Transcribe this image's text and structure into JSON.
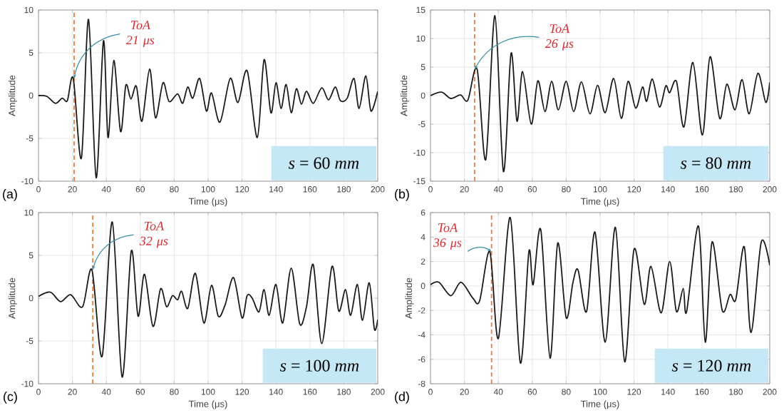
{
  "chart_data": [
    {
      "type": "line",
      "xlabel": "Time (μs)",
      "ylabel": "Amplitude",
      "xlim": [
        0,
        200
      ],
      "ylim": [
        -10,
        10
      ],
      "xticks": [
        0,
        20,
        40,
        60,
        80,
        100,
        120,
        140,
        160,
        180,
        200
      ],
      "yticks": [
        -10,
        -5,
        0,
        5,
        10
      ],
      "grid": true,
      "marker": "none",
      "line_style": "solid",
      "color": "#1a1a1a",
      "x": [
        0,
        5,
        10,
        14,
        17,
        20.5,
        25.3,
        29.5,
        34,
        38.3,
        41,
        44.4,
        48.4,
        51.5,
        54.5,
        57.7,
        61,
        65.5,
        69,
        73.4,
        77,
        82,
        85,
        88,
        91,
        95,
        99,
        102,
        107,
        113,
        117.6,
        123,
        129,
        133,
        137,
        140,
        143,
        146,
        149,
        152,
        155,
        158,
        162,
        167,
        171,
        175,
        178,
        182,
        186,
        189,
        193,
        196,
        200
      ],
      "values": [
        0,
        -0.1,
        -0.9,
        -0.3,
        -0.6,
        2.0,
        -7.3,
        8.9,
        -9.6,
        6.4,
        -4.9,
        4.1,
        -4.2,
        1.2,
        -0.4,
        1.1,
        -3.0,
        3.1,
        -2.6,
        1.5,
        -0.7,
        0.2,
        -0.9,
        1.0,
        -0.3,
        2.0,
        -1.8,
        0.3,
        -3.1,
        2.0,
        -0.8,
        2.9,
        -4.9,
        4.2,
        -2.0,
        1.5,
        -1.5,
        1.3,
        -2.0,
        0.8,
        -1.0,
        0.5,
        -0.9,
        0.9,
        -0.5,
        1.0,
        -0.6,
        -0.3,
        2.0,
        -1.5,
        2.3,
        -1.8,
        0.5
      ],
      "ref_lines": [
        {
          "axis": "x",
          "value": 21,
          "color": "#f07c3c",
          "line_style": "dashed"
        }
      ],
      "annotations": [
        {
          "text": "ToA 21 μs",
          "x": 21,
          "y": 2
        },
        "*s* = 60 *mm*",
        "(a)"
      ]
    },
    {
      "type": "line",
      "xlabel": "Time (μs)",
      "ylabel": "Amplitude",
      "xlim": [
        0,
        200
      ],
      "ylim": [
        -15,
        15
      ],
      "xticks": [
        0,
        20,
        40,
        60,
        80,
        100,
        120,
        140,
        160,
        180,
        200
      ],
      "yticks": [
        -15,
        -10,
        -5,
        0,
        5,
        10,
        15
      ],
      "grid": true,
      "marker": "none",
      "line_style": "solid",
      "color": "#1a1a1a",
      "x": [
        0,
        6.5,
        12,
        17.7,
        22,
        27.5,
        32.6,
        38,
        43,
        47.5,
        51,
        54.3,
        59.4,
        63.3,
        67.5,
        71.4,
        75.4,
        80,
        84.4,
        89,
        94,
        98.5,
        103,
        108,
        112.5,
        116.5,
        121,
        125,
        127.4,
        130.8,
        135,
        138.7,
        141,
        145,
        149.4,
        154.7,
        160.3,
        164.8,
        170.5,
        174.7,
        179.5,
        183.7,
        187.9,
        193,
        197.7,
        200
      ],
      "values": [
        0,
        0.6,
        -0.5,
        0.1,
        -0.8,
        4.6,
        -11.2,
        14.0,
        -13.3,
        7.4,
        -4.5,
        4.2,
        -5.0,
        2.6,
        -2.8,
        2.5,
        -2.5,
        2.5,
        -2.8,
        2.4,
        -3.2,
        1.8,
        -3.0,
        3.0,
        -4.0,
        2.5,
        -2.2,
        1.5,
        -1.0,
        2.9,
        -2.0,
        1.7,
        0.5,
        2.5,
        -5.5,
        5.8,
        -6.9,
        6.8,
        -4.0,
        2.0,
        -2.5,
        2.8,
        -3.2,
        3.9,
        -1.2,
        2.3
      ],
      "ref_lines": [
        {
          "axis": "x",
          "value": 26,
          "color": "#f07c3c",
          "line_style": "dashed"
        }
      ],
      "annotations": [
        {
          "text": "ToA 26 μs",
          "x": 26,
          "y": 4.6
        },
        "*s* = 80 *mm*",
        "(b)"
      ]
    },
    {
      "type": "line",
      "xlabel": "Time (μs)",
      "ylabel": "Amplitude",
      "xlim": [
        0,
        200
      ],
      "ylim": [
        -10,
        10
      ],
      "xticks": [
        0,
        20,
        40,
        60,
        80,
        100,
        120,
        140,
        160,
        180,
        200
      ],
      "yticks": [
        -10,
        -5,
        0,
        5,
        10
      ],
      "grid": true,
      "marker": "none",
      "line_style": "solid",
      "color": "#1a1a1a",
      "x": [
        0,
        7,
        13,
        19,
        26,
        31.5,
        37.5,
        43.5,
        49.3,
        54.7,
        58.7,
        62.5,
        67.5,
        72,
        75.5,
        79,
        82,
        84.4,
        88,
        92.5,
        97.5,
        102,
        106,
        110,
        115,
        120,
        123,
        126,
        130,
        133,
        136,
        140,
        144,
        149,
        154,
        158,
        162,
        167,
        173,
        177,
        181,
        184,
        188,
        191,
        195,
        198,
        200
      ],
      "values": [
        0.2,
        0.7,
        -0.4,
        0.4,
        -1.0,
        3.3,
        -6.8,
        8.9,
        -9.2,
        5.5,
        -2.1,
        2.8,
        -3.3,
        1.1,
        -1.0,
        0.3,
        -0.2,
        0.8,
        -1.2,
        2.9,
        -2.9,
        1.5,
        -2.1,
        -0.8,
        2.4,
        -2.3,
        0.3,
        0,
        -1.6,
        1.0,
        -2.0,
        1.6,
        -2.9,
        3.5,
        -3.0,
        -1.0,
        3.9,
        -5.3,
        3.7,
        -1.5,
        1.0,
        -2.0,
        1.6,
        -2.6,
        1.8,
        -3.6,
        -2.5
      ],
      "ref_lines": [
        {
          "axis": "x",
          "value": 32,
          "color": "#f07c3c",
          "line_style": "dashed"
        }
      ],
      "annotations": [
        {
          "text": "ToA 32 μs",
          "x": 32,
          "y": 3.3
        },
        "*s* = 100 *mm*",
        "(c)"
      ]
    },
    {
      "type": "line",
      "xlabel": "Time (μs)",
      "ylabel": "Amplitude",
      "xlim": [
        0,
        200
      ],
      "ylim": [
        -8,
        6
      ],
      "xticks": [
        0,
        20,
        40,
        60,
        80,
        100,
        120,
        140,
        160,
        180,
        200
      ],
      "yticks": [
        -8,
        -6,
        -4,
        -2,
        0,
        2,
        4,
        6
      ],
      "grid": true,
      "marker": "none",
      "line_style": "solid",
      "color": "#1a1a1a",
      "x": [
        0,
        5,
        12,
        18,
        25,
        29,
        35,
        40,
        47,
        53,
        58,
        60.5,
        65,
        70.5,
        75,
        80,
        84,
        87,
        92,
        97,
        103,
        109,
        114.5,
        120,
        126,
        130,
        136,
        141,
        145,
        149,
        151,
        158,
        162,
        166,
        172,
        176.6,
        180,
        185,
        189,
        195,
        200
      ],
      "values": [
        0.1,
        0.3,
        -0.8,
        0.3,
        -1.0,
        -1.2,
        2.8,
        -4.3,
        5.6,
        -6.3,
        2.8,
        0.1,
        4.6,
        -5.9,
        3.5,
        -2.6,
        0.3,
        1.3,
        -2.1,
        4.4,
        -4.6,
        4.8,
        -6.2,
        3.0,
        -1.5,
        1.6,
        -2.2,
        2.0,
        -2.1,
        -0.2,
        -2.1,
        4.9,
        -4.6,
        3.6,
        -2.0,
        -0.7,
        -1.1,
        3.2,
        -3.8,
        3.6,
        1.7
      ],
      "ref_lines": [
        {
          "axis": "x",
          "value": 36,
          "color": "#f07c3c",
          "line_style": "dashed"
        }
      ],
      "annotations": [
        {
          "text": "ToA 36 μs",
          "x": 36,
          "y": 2.8
        },
        "*s* = 120 *mm*",
        "(d)"
      ]
    }
  ]
}
